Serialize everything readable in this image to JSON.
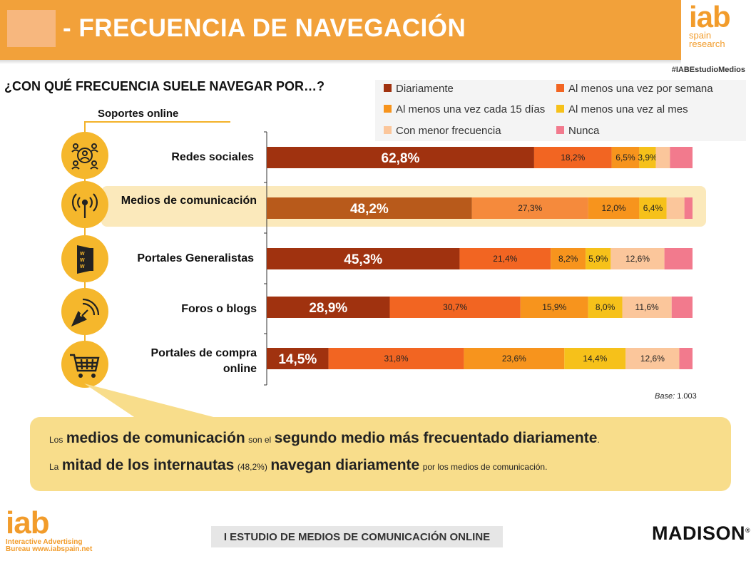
{
  "header": {
    "title": "- FRECUENCIA DE NAVEGACIÓN",
    "hashtag": "#IABEstudioMedios",
    "logo": {
      "big": "iab",
      "line1": "spain",
      "line2": "research"
    }
  },
  "question": "¿CON QUÉ FRECUENCIA SUELE NAVEGAR POR…?",
  "supports_title": "Soportes online",
  "colors": {
    "diariamente": "#a0320f",
    "semanal": "#f26522",
    "quincenal": "#f7941d",
    "mensual": "#f6c11a",
    "menor": "#fbc69b",
    "nunca": "#f27a8d",
    "highlight_daily": "#b85a1b",
    "accent": "#f2a13a"
  },
  "icons": [
    "people-network-icon",
    "antenna-icon",
    "www-door-icon",
    "pen-nib-icon",
    "shopping-cart-icon"
  ],
  "chart_data": {
    "type": "bar",
    "orientation": "horizontal-stacked-100",
    "title": "¿CON QUÉ FRECUENCIA SUELE NAVEGAR POR…?",
    "categories": [
      "Redes sociales",
      "Medios de comunicación",
      "Portales Generalistas",
      "Foros o blogs",
      "Portales de compra online"
    ],
    "highlighted_category": "Medios de comunicación",
    "series": [
      {
        "name": "Diariamente",
        "values": [
          62.8,
          48.2,
          45.3,
          28.9,
          14.5
        ],
        "labels": [
          "62,8%",
          "48,2%",
          "45,3%",
          "28,9%",
          "14,5%"
        ]
      },
      {
        "name": "Al menos una vez por semana",
        "values": [
          18.2,
          27.3,
          21.4,
          30.7,
          31.8
        ],
        "labels": [
          "18,2%",
          "27,3%",
          "21,4%",
          "30,7%",
          "31,8%"
        ]
      },
      {
        "name": "Al menos una vez cada 15 días",
        "values": [
          6.5,
          12.0,
          8.2,
          15.9,
          23.6
        ],
        "labels": [
          "6,5%",
          "12,0%",
          "8,2%",
          "15,9%",
          "23,6%"
        ]
      },
      {
        "name": "Al menos una vez al mes",
        "values": [
          3.9,
          6.4,
          5.9,
          8.0,
          14.4
        ],
        "labels": [
          "3,9%",
          "6,4%",
          "5,9%",
          "8,0%",
          "14,4%"
        ]
      },
      {
        "name": "Con menor frecuencia",
        "values": [
          3.3,
          4.2,
          12.6,
          11.6,
          12.6
        ],
        "labels": [
          "",
          "",
          "12,6%",
          "11,6%",
          "12,6%"
        ]
      },
      {
        "name": "Nunca",
        "values": [
          5.3,
          1.9,
          6.6,
          4.9,
          3.1
        ],
        "labels": [
          "",
          "",
          "",
          "",
          ""
        ]
      }
    ],
    "xlim": [
      0,
      100
    ]
  },
  "base": {
    "label": "Base:",
    "value": "1.003"
  },
  "callout": {
    "l1_a": "Los",
    "l1_b": "medios de comunicación",
    "l1_c": "son el",
    "l1_d": "segundo medio más frecuentado diariamente",
    "l1_e": ".",
    "l2_a": "La",
    "l2_b": "mitad de los internautas",
    "l2_c": "(48,2%)",
    "l2_d": "navegan diariamente",
    "l2_e": "por los medios de comunicación."
  },
  "footer": {
    "study": "I ESTUDIO DE MEDIOS DE COMUNICACIÓN ONLINE",
    "iab_big": "iab",
    "iab_line1": "Interactive Advertising",
    "iab_line2": "Bureau www.iabspain.net",
    "madison": "MADISON",
    "madison_mark": "®"
  }
}
